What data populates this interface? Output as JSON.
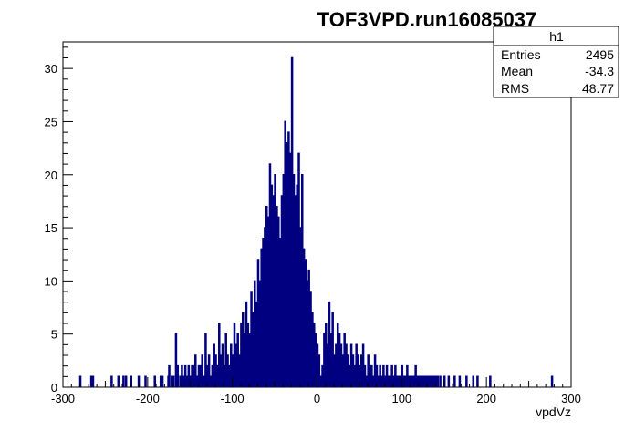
{
  "chart_data": {
    "type": "histogram",
    "title": "TOF3VPD.run16085037",
    "xlabel": "vpdVz",
    "ylabel": "",
    "xlim": [
      -300,
      300
    ],
    "ylim": [
      0,
      32.5
    ],
    "x_ticks": [
      -300,
      -200,
      -100,
      0,
      100,
      200,
      300
    ],
    "x_tick_labels": [
      "-300",
      "-200",
      "-100",
      "0",
      "100",
      "200",
      "300"
    ],
    "y_ticks": [
      0,
      5,
      10,
      15,
      20,
      25,
      30
    ],
    "y_tick_labels": [
      "0",
      "5",
      "10",
      "15",
      "20",
      "25",
      "30"
    ],
    "bin_width": 1,
    "bins_x": [
      -280,
      -267,
      -265,
      -243,
      -235,
      -229,
      -226,
      -220,
      -211,
      -203,
      -192,
      -185,
      -183,
      -176,
      -175,
      -172,
      -170,
      -167,
      -165,
      -162,
      -160,
      -158,
      -156,
      -154,
      -152,
      -150,
      -148,
      -146,
      -144,
      -142,
      -140,
      -138,
      -136,
      -134,
      -132,
      -130,
      -128,
      -126,
      -124,
      -122,
      -120,
      -118,
      -116,
      -114,
      -112,
      -110,
      -108,
      -106,
      -104,
      -102,
      -100,
      -98,
      -96,
      -94,
      -92,
      -90,
      -88,
      -86,
      -84,
      -82,
      -80,
      -78,
      -76,
      -74,
      -72,
      -70,
      -68,
      -66,
      -64,
      -62,
      -60,
      -58,
      -56,
      -54,
      -52,
      -50,
      -48,
      -46,
      -44,
      -42,
      -40,
      -38,
      -36,
      -34,
      -32,
      -30,
      -28,
      -26,
      -24,
      -22,
      -20,
      -18,
      -16,
      -14,
      -12,
      -10,
      -8,
      -6,
      -4,
      -2,
      0,
      2,
      4,
      6,
      8,
      10,
      12,
      14,
      16,
      18,
      20,
      22,
      24,
      26,
      28,
      30,
      32,
      34,
      36,
      38,
      40,
      42,
      44,
      46,
      48,
      50,
      52,
      54,
      56,
      58,
      60,
      62,
      64,
      66,
      68,
      70,
      72,
      74,
      76,
      78,
      80,
      82,
      84,
      86,
      88,
      90,
      92,
      94,
      96,
      98,
      100,
      102,
      104,
      106,
      108,
      110,
      112,
      114,
      116,
      118,
      120,
      122,
      124,
      126,
      128,
      130,
      132,
      134,
      136,
      138,
      140,
      142,
      145,
      150,
      155,
      162,
      168,
      176,
      184,
      189,
      204,
      277
    ],
    "bins_y": [
      1,
      1,
      1,
      1,
      1,
      1,
      1,
      1,
      1,
      1,
      1,
      1,
      1,
      1,
      2,
      1,
      1,
      5,
      2,
      1,
      2,
      1,
      2,
      1,
      2,
      1,
      2,
      2,
      3,
      1,
      2,
      2,
      3,
      1,
      5,
      2,
      3,
      1,
      2,
      4,
      3,
      2,
      6,
      3,
      4,
      2,
      5,
      3,
      2,
      4,
      3,
      6,
      4,
      5,
      3,
      6,
      7,
      5,
      8,
      6,
      5,
      9,
      7,
      10,
      8,
      12,
      10,
      13,
      14,
      15,
      17,
      16,
      21,
      19,
      18,
      20,
      17,
      16,
      14,
      18,
      20,
      25,
      23,
      24,
      22,
      31,
      20,
      18,
      19,
      22,
      15,
      20,
      13,
      12,
      10,
      11,
      9,
      7,
      6,
      5,
      4,
      3,
      1,
      2,
      5,
      6,
      4,
      8,
      5,
      7,
      3,
      4,
      6,
      5,
      4,
      3,
      5,
      4,
      3,
      2,
      4,
      3,
      2,
      4,
      3,
      2,
      3,
      4,
      2,
      1,
      3,
      2,
      2,
      1,
      3,
      2,
      1,
      2,
      1,
      2,
      1,
      2,
      1,
      1,
      2,
      1,
      2,
      1,
      1,
      1,
      2,
      1,
      1,
      2,
      1,
      1,
      1,
      1,
      2,
      1,
      1,
      1,
      1,
      1,
      1,
      1,
      1,
      1,
      1,
      1,
      1,
      1,
      1,
      1,
      1,
      1,
      1,
      1,
      1,
      1,
      1,
      1,
      1,
      1,
      1,
      1,
      1
    ],
    "grid": false,
    "line_color": "#000080",
    "stats_box": {
      "title": "h1",
      "rows": [
        {
          "label": "Entries",
          "value": "2495"
        },
        {
          "label": "Mean",
          "value": "-34.3"
        },
        {
          "label": "RMS",
          "value": "48.77"
        }
      ]
    }
  }
}
